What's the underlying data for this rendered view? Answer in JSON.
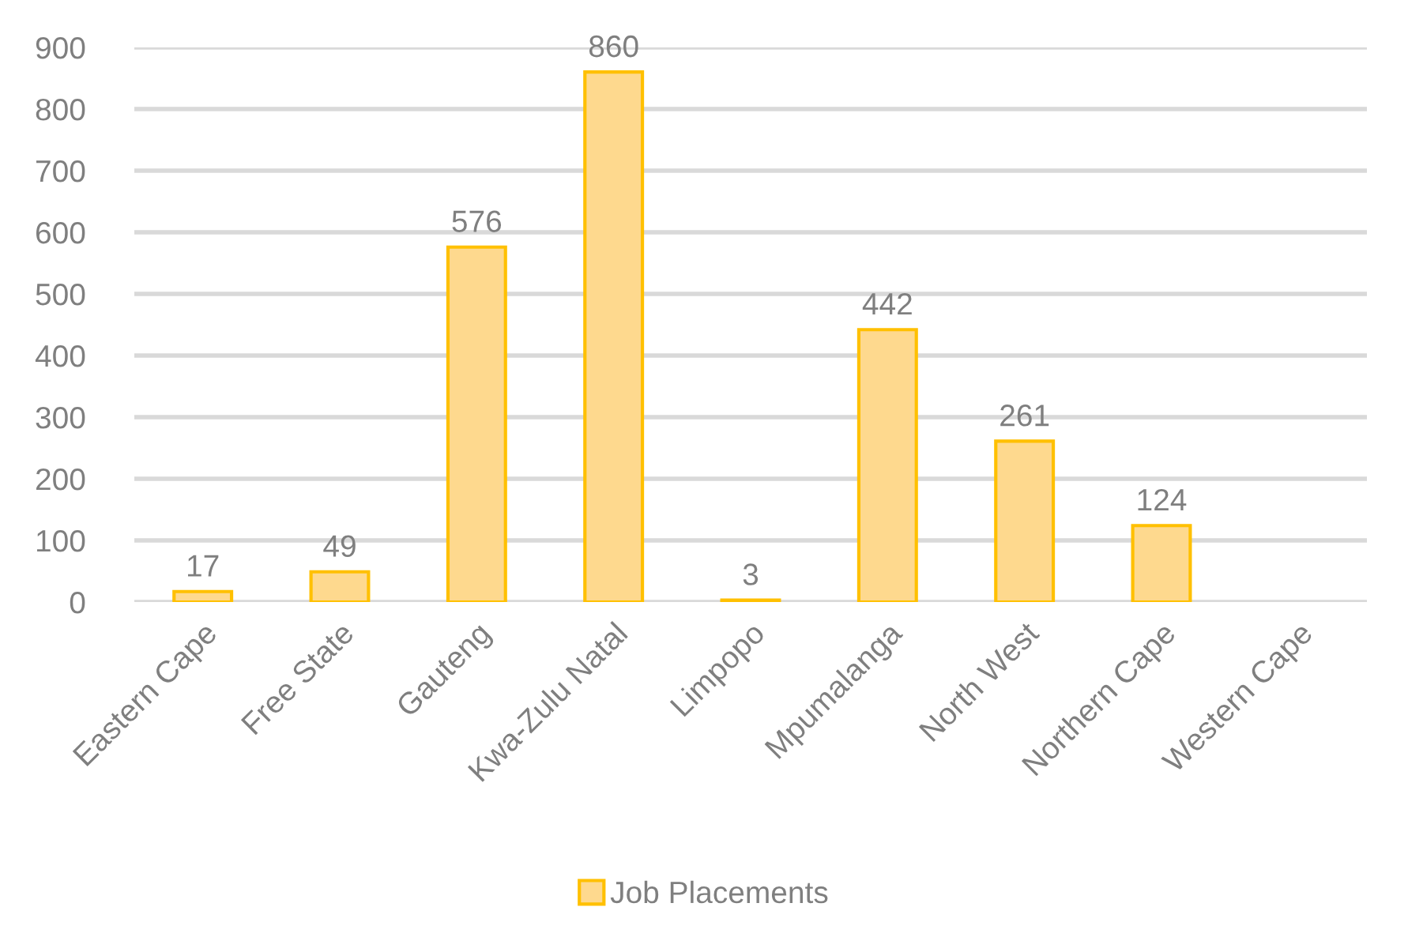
{
  "chart_data": {
    "type": "bar",
    "categories": [
      "Eastern Cape",
      "Free State",
      "Gauteng",
      "Kwa-Zulu Natal",
      "Limpopo",
      "Mpumalanga",
      "North West",
      "Northern Cape",
      "Western Cape"
    ],
    "series": [
      {
        "name": "Job Placements",
        "color": "#fed98e",
        "values": [
          17,
          49,
          576,
          860,
          3,
          442,
          261,
          124,
          null
        ]
      }
    ],
    "ylim": [
      0,
      900
    ],
    "yticks": [
      0,
      100,
      200,
      300,
      400,
      500,
      600,
      700,
      800,
      900
    ],
    "grid": "y",
    "legend": "bottom",
    "data_labels": true
  }
}
